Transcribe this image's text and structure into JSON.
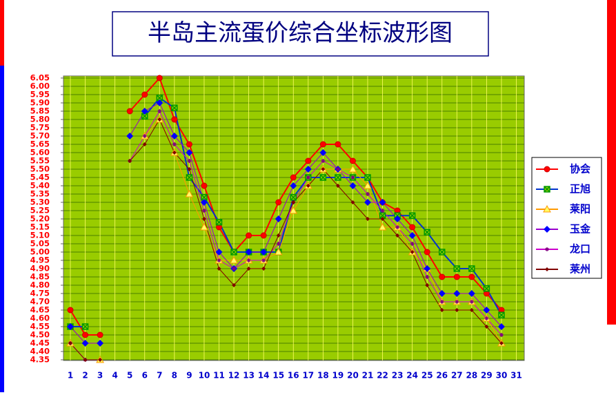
{
  "chart_data": {
    "type": "line",
    "title": "半岛主流蛋价综合坐标波形图",
    "categories": [
      "1",
      "2",
      "3",
      "4",
      "5",
      "6",
      "7",
      "8",
      "9",
      "10",
      "11",
      "12",
      "13",
      "14",
      "15",
      "16",
      "17",
      "18",
      "19",
      "20",
      "21",
      "22",
      "23",
      "24",
      "25",
      "26",
      "27",
      "28",
      "29",
      "30",
      "31"
    ],
    "ylim": [
      4.35,
      6.05
    ],
    "yticks": [
      4.35,
      {
        "value": 4.4,
        "label": "4.40"
      },
      4.45,
      {
        "value": 4.5,
        "label": "4.50"
      },
      4.55,
      {
        "value": 4.6,
        "label": "4.60"
      },
      4.65,
      {
        "value": 4.7,
        "label": "4.70"
      },
      4.75,
      {
        "value": 4.8,
        "label": "4.80"
      },
      4.85,
      {
        "value": 4.9,
        "label": "4.90"
      },
      4.95,
      {
        "value": 5,
        "label": "5.00"
      },
      5.05,
      {
        "value": 5.1,
        "label": "5.10"
      },
      5.15,
      {
        "value": 5.2,
        "label": "5.20"
      },
      5.25,
      {
        "value": 5.3,
        "label": "5.30"
      },
      5.35,
      {
        "value": 5.4,
        "label": "5.40"
      },
      5.45,
      {
        "value": 5.5,
        "label": "5.50"
      },
      5.55,
      {
        "value": 5.6,
        "label": "5.60"
      },
      5.65,
      {
        "value": 5.7,
        "label": "5.70"
      },
      5.75,
      {
        "value": 5.8,
        "label": "5.80"
      },
      5.85,
      {
        "value": 5.9,
        "label": "5.90"
      },
      5.95,
      {
        "value": 6,
        "label": "6.00"
      },
      6.05
    ],
    "grid": true,
    "legend": "right",
    "series": [
      {
        "name": "协会",
        "color": "#ff0000",
        "marker": "circle",
        "marker_color": "#ff0000",
        "values": [
          4.65,
          4.5,
          4.5,
          null,
          5.85,
          5.95,
          6.05,
          5.8,
          5.65,
          5.4,
          5.15,
          5,
          5.1,
          5.1,
          5.3,
          5.45,
          5.55,
          5.65,
          5.65,
          5.55,
          5.45,
          5.3,
          5.25,
          5.15,
          5,
          4.85,
          4.85,
          4.85,
          4.75,
          4.65,
          null
        ]
      },
      {
        "name": "正旭",
        "color": "#0033cc",
        "marker": "square",
        "marker_color": "#009900",
        "values": [
          4.55,
          4.55,
          null,
          null,
          null,
          5.82,
          5.93,
          5.87,
          5.45,
          5.33,
          5.18,
          5,
          5,
          5,
          5,
          5.33,
          5.45,
          5.45,
          5.45,
          5.45,
          5.45,
          5.22,
          5.22,
          5.22,
          5.12,
          5,
          4.9,
          4.9,
          4.78,
          4.62,
          null
        ]
      },
      {
        "name": "莱阳",
        "color": "#ff9900",
        "marker": "triangle",
        "marker_color": "#ffff66",
        "values": [
          4.45,
          null,
          4.35,
          null,
          null,
          5.7,
          5.8,
          5.6,
          5.35,
          5.15,
          4.95,
          4.95,
          4.95,
          4.95,
          5,
          5.25,
          5.4,
          5.5,
          5.5,
          5.5,
          5.4,
          5.15,
          5.15,
          5,
          4.9,
          4.7,
          4.7,
          4.7,
          4.6,
          4.45,
          null
        ]
      },
      {
        "name": "玉金",
        "color": "#9900cc",
        "marker": "diamond",
        "marker_color": "#0000ff",
        "values": [
          4.55,
          4.45,
          4.45,
          null,
          5.7,
          5.85,
          5.9,
          5.7,
          5.6,
          5.3,
          5,
          4.9,
          5,
          5,
          5.2,
          5.4,
          5.5,
          5.6,
          5.5,
          5.4,
          5.3,
          5.3,
          5.2,
          5.1,
          4.9,
          4.75,
          4.75,
          4.75,
          4.65,
          4.55,
          null
        ]
      },
      {
        "name": "龙口",
        "color": "#cc00cc",
        "marker": "star",
        "marker_color": "#800080",
        "values": [
          4.45,
          4.35,
          null,
          null,
          5.55,
          5.7,
          5.85,
          5.65,
          5.55,
          5.25,
          4.95,
          4.9,
          4.95,
          4.95,
          5.05,
          5.3,
          5.45,
          5.55,
          5.5,
          5.45,
          5.35,
          5.25,
          5.15,
          5.05,
          4.85,
          4.7,
          4.7,
          4.7,
          4.6,
          4.5,
          null
        ]
      },
      {
        "name": "莱州",
        "color": "#800000",
        "marker": "small-diamond",
        "marker_color": "#800000",
        "values": [
          4.45,
          4.35,
          4.35,
          null,
          5.55,
          5.65,
          5.8,
          5.6,
          5.5,
          5.2,
          4.9,
          4.8,
          4.9,
          4.9,
          5.1,
          5.3,
          5.4,
          5.5,
          5.4,
          5.3,
          5.2,
          5.2,
          5.1,
          5,
          4.8,
          4.65,
          4.65,
          4.65,
          4.55,
          4.45,
          null
        ]
      }
    ]
  }
}
